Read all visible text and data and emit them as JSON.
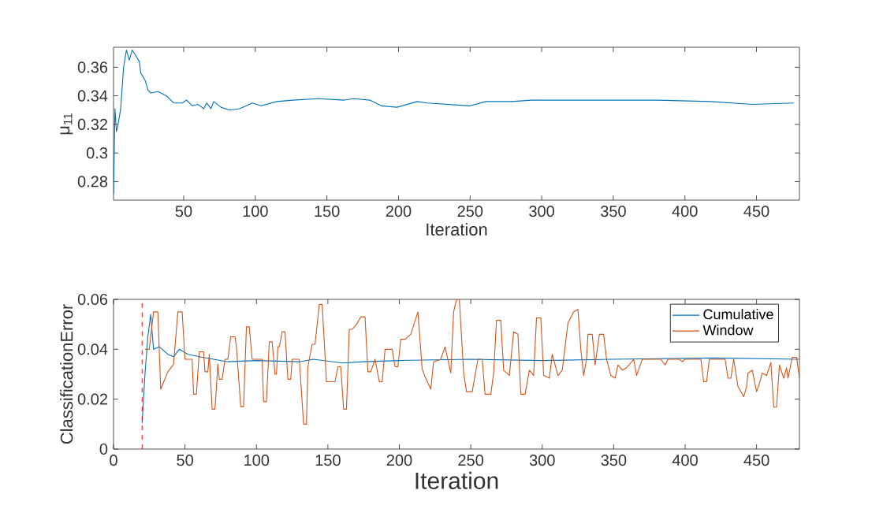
{
  "chart_data": [
    {
      "type": "line",
      "xlabel": "Iteration",
      "ylabel": "μ$_{11}$",
      "xlim": [
        1,
        480
      ],
      "ylim": [
        0.267,
        0.374
      ],
      "xticks": [
        50,
        100,
        150,
        200,
        250,
        300,
        350,
        400,
        450
      ],
      "yticks": [
        0.28,
        0.3,
        0.32,
        0.34,
        0.36
      ],
      "grid": false,
      "legend": false,
      "series": [
        {
          "color": "#0072bd",
          "x": [
            1,
            2,
            3,
            4,
            6,
            8,
            10,
            12,
            14,
            16,
            19,
            20,
            23,
            25,
            27,
            32,
            38,
            43,
            49,
            52,
            56,
            60,
            64,
            66,
            69,
            71,
            76,
            82,
            89,
            98,
            104,
            115,
            126,
            144,
            162,
            169,
            180,
            188,
            199,
            213,
            220,
            235,
            250,
            261,
            279,
            293,
            308,
            345,
            381,
            418,
            447,
            476
          ],
          "values": [
            0.271,
            0.331,
            0.315,
            0.319,
            0.331,
            0.36,
            0.372,
            0.365,
            0.372,
            0.369,
            0.364,
            0.356,
            0.351,
            0.344,
            0.342,
            0.343,
            0.34,
            0.335,
            0.335,
            0.337,
            0.333,
            0.334,
            0.331,
            0.335,
            0.331,
            0.336,
            0.332,
            0.33,
            0.331,
            0.335,
            0.333,
            0.336,
            0.337,
            0.338,
            0.337,
            0.338,
            0.337,
            0.333,
            0.332,
            0.336,
            0.335,
            0.334,
            0.333,
            0.336,
            0.336,
            0.337,
            0.337,
            0.337,
            0.337,
            0.336,
            0.334,
            0.335
          ]
        }
      ]
    },
    {
      "type": "line",
      "xlabel": "Iteration",
      "ylabel": "ClassificationError",
      "xlim": [
        0,
        480
      ],
      "ylim": [
        0,
        0.06
      ],
      "xticks": [
        0,
        50,
        100,
        150,
        200,
        250,
        300,
        350,
        400,
        450
      ],
      "yticks": [
        0,
        0.02,
        0.04,
        0.06
      ],
      "grid": false,
      "legend": "top right",
      "ref_lines": [
        {
          "axis": "x",
          "value": 20,
          "color": "#ff0000",
          "line_style": "dashed"
        }
      ],
      "series": [
        {
          "name": "Cumulative",
          "color": "#0072bd",
          "x": [
            20,
            22,
            24,
            26,
            28,
            32,
            38,
            42,
            46,
            52,
            60,
            70,
            80,
            100,
            130,
            140,
            160,
            175,
            200,
            250,
            300,
            350,
            420,
            480
          ],
          "values": [
            0.0105,
            0.03,
            0.045,
            0.054,
            0.04,
            0.041,
            0.038,
            0.037,
            0.04,
            0.038,
            0.037,
            0.036,
            0.035,
            0.0355,
            0.035,
            0.036,
            0.0345,
            0.035,
            0.0355,
            0.036,
            0.0355,
            0.036,
            0.0365,
            0.036
          ]
        },
        {
          "name": "Window",
          "color": "#d95319",
          "x": [
            22,
            25,
            28,
            31,
            33,
            38,
            42,
            45,
            48,
            50,
            55,
            56,
            58,
            60,
            63,
            64,
            66,
            67,
            69,
            71,
            73,
            74,
            76,
            78,
            80,
            82,
            85,
            86,
            89,
            91,
            93,
            95,
            97,
            104,
            105,
            107,
            109,
            111,
            113,
            114,
            115,
            116,
            118,
            120,
            122,
            124,
            125,
            127,
            130,
            133,
            135,
            136,
            139,
            141,
            144,
            146,
            149,
            155,
            157,
            159,
            161,
            163,
            165,
            167,
            170,
            173,
            176,
            178,
            180,
            183,
            186,
            188,
            190,
            195,
            197,
            199,
            201,
            204,
            208,
            213,
            216,
            218,
            222,
            224,
            229,
            232,
            236,
            238,
            240,
            242,
            245,
            247,
            251,
            255,
            258,
            260,
            264,
            266,
            268,
            271,
            273,
            277,
            280,
            283,
            285,
            288,
            291,
            294,
            296,
            299,
            301,
            305,
            307,
            311,
            314,
            316,
            318,
            322,
            325,
            327,
            329,
            331,
            332,
            335,
            337,
            340,
            343,
            345,
            348,
            351,
            353,
            356,
            359,
            364,
            366,
            370,
            383,
            386,
            388,
            396,
            398,
            400,
            411,
            413,
            415,
            417,
            428,
            430,
            432,
            434,
            437,
            441,
            443,
            444,
            447,
            450,
            452,
            454,
            457,
            460,
            462,
            464,
            466,
            469,
            471,
            472,
            475,
            478,
            480
          ],
          "values": [
            0.04,
            0.04,
            0.055,
            0.055,
            0.024,
            0.031,
            0.034,
            0.055,
            0.055,
            0.036,
            0.036,
            0.022,
            0.022,
            0.039,
            0.039,
            0.031,
            0.031,
            0.038,
            0.016,
            0.016,
            0.034,
            0.028,
            0.028,
            0.036,
            0.036,
            0.045,
            0.045,
            0.041,
            0.017,
            0.017,
            0.049,
            0.049,
            0.036,
            0.036,
            0.019,
            0.019,
            0.043,
            0.043,
            0.03,
            0.03,
            0.041,
            0.041,
            0.047,
            0.047,
            0.028,
            0.028,
            0.036,
            0.036,
            0.036,
            0.01,
            0.01,
            0.033,
            0.042,
            0.042,
            0.058,
            0.058,
            0.027,
            0.027,
            0.033,
            0.033,
            0.016,
            0.016,
            0.048,
            0.048,
            0.05,
            0.053,
            0.053,
            0.031,
            0.031,
            0.036,
            0.027,
            0.027,
            0.04,
            0.04,
            0.033,
            0.033,
            0.044,
            0.044,
            0.046,
            0.055,
            0.032,
            0.029,
            0.024,
            0.035,
            0.036,
            0.041,
            0.0305,
            0.055,
            0.06,
            0.06,
            0.0305,
            0.023,
            0.023,
            0.036,
            0.036,
            0.022,
            0.022,
            0.0305,
            0.0516,
            0.0516,
            0.0316,
            0.0295,
            0.047,
            0.046,
            0.022,
            0.022,
            0.0316,
            0.0295,
            0.0526,
            0.0526,
            0.0295,
            0.0284,
            0.038,
            0.0295,
            0.0316,
            0.041,
            0.0505,
            0.055,
            0.056,
            0.04,
            0.0295,
            0.036,
            0.046,
            0.046,
            0.0337,
            0.046,
            0.046,
            0.036,
            0.0295,
            0.0284,
            0.0337,
            0.0316,
            0.0326,
            0.036,
            0.0295,
            0.036,
            0.036,
            0.0337,
            0.036,
            0.036,
            0.035,
            0.036,
            0.036,
            0.027,
            0.027,
            0.036,
            0.036,
            0.0284,
            0.0284,
            0.036,
            0.025,
            0.021,
            0.025,
            0.0305,
            0.0316,
            0.023,
            0.0263,
            0.0305,
            0.0295,
            0.0347,
            0.0168,
            0.0168,
            0.0337,
            0.0284,
            0.0326,
            0.0284,
            0.0368,
            0.0368,
            0.0284
          ]
        }
      ]
    }
  ]
}
